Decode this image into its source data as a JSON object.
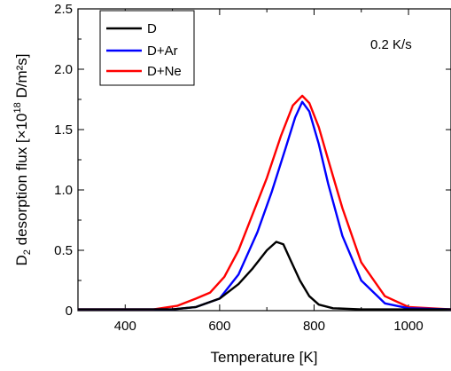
{
  "chart_data": {
    "type": "line",
    "xlabel": "Temperature [K]",
    "ylabel_prefix": "D",
    "ylabel_sub": "2",
    "ylabel_mid": " desorption flux [×10",
    "ylabel_sup": "18",
    "ylabel_suffix": " D/m²s]",
    "xlim": [
      300,
      1090
    ],
    "ylim": [
      0,
      2.5
    ],
    "xticks": [
      400,
      600,
      800,
      1000
    ],
    "yticks": [
      0,
      0.5,
      1.0,
      1.5,
      2.0,
      2.5
    ],
    "ytick_labels": [
      "0",
      "0.5",
      "1.0",
      "1.5",
      "2.0",
      "2.5"
    ],
    "annotation": "0.2 K/s",
    "legend_position": "top-left",
    "series": [
      {
        "name": "D",
        "color": "#000000",
        "points": [
          [
            300,
            0.01
          ],
          [
            400,
            0.01
          ],
          [
            500,
            0.01
          ],
          [
            550,
            0.03
          ],
          [
            600,
            0.1
          ],
          [
            640,
            0.22
          ],
          [
            670,
            0.35
          ],
          [
            700,
            0.5
          ],
          [
            720,
            0.57
          ],
          [
            735,
            0.55
          ],
          [
            750,
            0.42
          ],
          [
            770,
            0.25
          ],
          [
            790,
            0.12
          ],
          [
            810,
            0.05
          ],
          [
            840,
            0.02
          ],
          [
            900,
            0.01
          ],
          [
            1000,
            0.01
          ],
          [
            1090,
            0.01
          ]
        ]
      },
      {
        "name": "D+Ar",
        "color": "#0000ff",
        "points": [
          [
            300,
            0.01
          ],
          [
            400,
            0.01
          ],
          [
            500,
            0.01
          ],
          [
            550,
            0.03
          ],
          [
            600,
            0.1
          ],
          [
            640,
            0.3
          ],
          [
            680,
            0.65
          ],
          [
            710,
            0.98
          ],
          [
            740,
            1.35
          ],
          [
            760,
            1.6
          ],
          [
            775,
            1.73
          ],
          [
            790,
            1.65
          ],
          [
            810,
            1.38
          ],
          [
            830,
            1.05
          ],
          [
            860,
            0.62
          ],
          [
            900,
            0.25
          ],
          [
            950,
            0.06
          ],
          [
            1000,
            0.02
          ],
          [
            1090,
            0.01
          ]
        ]
      },
      {
        "name": "D+Ne",
        "color": "#ff0000",
        "points": [
          [
            300,
            0.01
          ],
          [
            400,
            0.01
          ],
          [
            460,
            0.01
          ],
          [
            510,
            0.04
          ],
          [
            550,
            0.1
          ],
          [
            580,
            0.15
          ],
          [
            610,
            0.28
          ],
          [
            640,
            0.5
          ],
          [
            670,
            0.8
          ],
          [
            700,
            1.1
          ],
          [
            730,
            1.45
          ],
          [
            755,
            1.7
          ],
          [
            775,
            1.78
          ],
          [
            790,
            1.72
          ],
          [
            810,
            1.52
          ],
          [
            830,
            1.25
          ],
          [
            860,
            0.85
          ],
          [
            900,
            0.4
          ],
          [
            950,
            0.12
          ],
          [
            1000,
            0.03
          ],
          [
            1090,
            0.01
          ]
        ]
      }
    ]
  }
}
